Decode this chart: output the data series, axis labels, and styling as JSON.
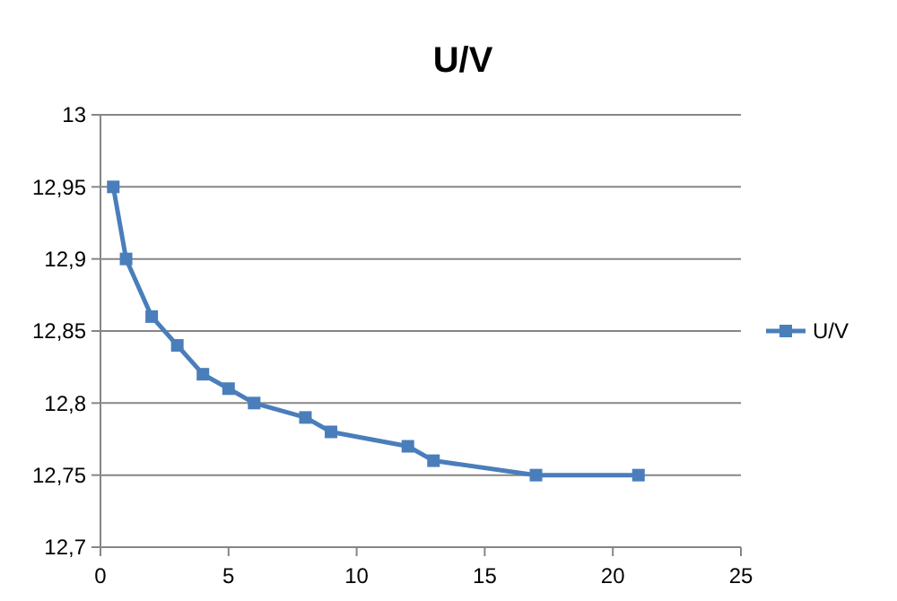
{
  "chart_data": {
    "type": "line",
    "title": "U/V",
    "x": [
      0.5,
      1,
      2,
      3,
      4,
      5,
      6,
      8,
      9,
      12,
      13,
      17,
      21
    ],
    "series": [
      {
        "name": "U/V",
        "color": "#4a7ebb",
        "values": [
          12.95,
          12.9,
          12.86,
          12.84,
          12.82,
          12.81,
          12.8,
          12.79,
          12.78,
          12.77,
          12.76,
          12.75,
          12.75
        ]
      }
    ],
    "xlim": [
      0,
      25
    ],
    "xticks": [
      0,
      5,
      10,
      15,
      20,
      25
    ],
    "ylim": [
      12.7,
      13
    ],
    "yticks": [
      {
        "value": 12.7,
        "label": "12,7"
      },
      {
        "value": 12.75,
        "label": "12,75"
      },
      {
        "value": 12.8,
        "label": "12,8"
      },
      {
        "value": 12.85,
        "label": "12,85"
      },
      {
        "value": 12.9,
        "label": "12,9"
      },
      {
        "value": 12.95,
        "label": "12,95"
      },
      13
    ],
    "grid": "y",
    "legend": "right",
    "marker": "square",
    "line_style": "solid"
  }
}
